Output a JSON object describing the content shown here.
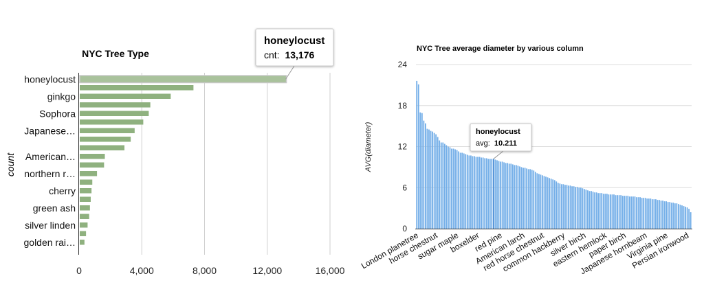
{
  "chart_data": [
    {
      "type": "bar",
      "orientation": "horizontal",
      "title": "NYC Tree Type",
      "xlabel": "",
      "ylabel": "count",
      "xlim": [
        0,
        16000
      ],
      "x_ticks": [
        "0",
        "4,000",
        "8,000",
        "12,000",
        "16,000"
      ],
      "y_tick_labels": [
        {
          "index": 0,
          "label": "honeylocust"
        },
        {
          "index": 2,
          "label": "ginkgo"
        },
        {
          "index": 4,
          "label": "Sophora"
        },
        {
          "index": 6,
          "label": "Japanese…"
        },
        {
          "index": 9,
          "label": "American…"
        },
        {
          "index": 11,
          "label": "northern r…"
        },
        {
          "index": 13,
          "label": "cherry"
        },
        {
          "index": 15,
          "label": "green ash"
        },
        {
          "index": 17,
          "label": "silver linden"
        },
        {
          "index": 19,
          "label": "golden rai…"
        }
      ],
      "values": [
        13176,
        7250,
        5800,
        4500,
        4400,
        4050,
        3500,
        3250,
        2850,
        1600,
        1550,
        1100,
        800,
        750,
        700,
        650,
        600,
        500,
        400,
        300
      ],
      "bar_color": "#8fb17f",
      "highlight_color": "#a9c29c",
      "grid": true,
      "tooltip": {
        "index": 0,
        "title": "honeylocust",
        "key": "cnt:",
        "value": "13,176"
      }
    },
    {
      "type": "bar",
      "title": "NYC Tree average diameter by various column",
      "xlabel": "",
      "ylabel": "AVG(diameter)",
      "ylim": [
        0,
        24
      ],
      "y_ticks": [
        "0",
        "6",
        "12",
        "18",
        "24"
      ],
      "x_tick_labels": [
        {
          "index": 0,
          "label": "London planetree"
        },
        {
          "index": 11,
          "label": "horse chestnut"
        },
        {
          "index": 23,
          "label": "sugar maple"
        },
        {
          "index": 35,
          "label": "boxelder"
        },
        {
          "index": 48,
          "label": "red pine"
        },
        {
          "index": 61,
          "label": "American larch"
        },
        {
          "index": 72,
          "label": "red horse chestnut"
        },
        {
          "index": 84,
          "label": "common hackberry"
        },
        {
          "index": 96,
          "label": "silver birch"
        },
        {
          "index": 108,
          "label": "eastern hemlock"
        },
        {
          "index": 119,
          "label": "paper birch"
        },
        {
          "index": 131,
          "label": "Japanese hornbeam"
        },
        {
          "index": 143,
          "label": "Virginia pine"
        },
        {
          "index": 155,
          "label": "Persian ironwood"
        }
      ],
      "values": [
        21.6,
        21.1,
        17.0,
        16.9,
        15.8,
        15.4,
        14.6,
        14.5,
        14.3,
        14.2,
        14.0,
        13.8,
        13.4,
        12.9,
        12.6,
        12.6,
        12.4,
        12.2,
        12.0,
        11.9,
        11.7,
        11.7,
        11.6,
        11.5,
        11.3,
        11.1,
        11.1,
        11.0,
        10.9,
        10.8,
        10.7,
        10.7,
        10.6,
        10.6,
        10.5,
        10.5,
        10.5,
        10.4,
        10.4,
        10.3,
        10.3,
        10.2,
        10.2,
        10.2,
        10.211,
        10.1,
        10.0,
        9.9,
        9.8,
        9.8,
        9.7,
        9.6,
        9.6,
        9.5,
        9.5,
        9.4,
        9.3,
        9.3,
        9.2,
        9.1,
        9.0,
        8.9,
        8.9,
        8.8,
        8.7,
        8.7,
        8.6,
        8.5,
        8.3,
        8.1,
        8.0,
        7.9,
        7.8,
        7.7,
        7.6,
        7.5,
        7.4,
        7.3,
        7.2,
        7.1,
        6.9,
        6.7,
        6.6,
        6.5,
        6.5,
        6.4,
        6.4,
        6.3,
        6.3,
        6.2,
        6.2,
        6.1,
        6.1,
        6.0,
        6.0,
        5.9,
        5.8,
        5.7,
        5.6,
        5.5,
        5.5,
        5.4,
        5.3,
        5.3,
        5.2,
        5.2,
        5.2,
        5.1,
        5.1,
        5.1,
        5.0,
        5.0,
        5.0,
        5.0,
        4.9,
        4.9,
        4.9,
        4.9,
        4.8,
        4.8,
        4.8,
        4.8,
        4.7,
        4.7,
        4.7,
        4.7,
        4.6,
        4.6,
        4.6,
        4.5,
        4.5,
        4.5,
        4.4,
        4.4,
        4.4,
        4.3,
        4.3,
        4.3,
        4.2,
        4.2,
        4.1,
        4.1,
        4.0,
        4.0,
        3.9,
        3.9,
        3.8,
        3.8,
        3.7,
        3.7,
        3.6,
        3.5,
        3.4,
        3.3,
        3.2,
        3.1,
        2.9,
        2.4
      ],
      "bar_color": "#73aee8",
      "highlight_color": "#4d8fd6",
      "grid": true,
      "tooltip": {
        "index": 44,
        "title": "honeylocust",
        "key": "avg:",
        "value": "10.211"
      }
    }
  ]
}
